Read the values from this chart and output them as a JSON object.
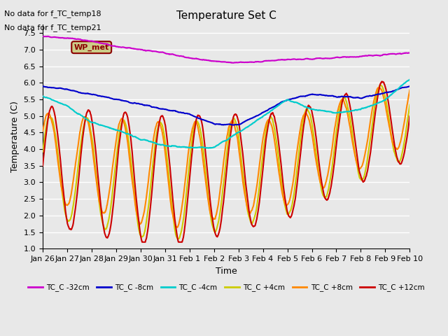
{
  "title": "Temperature Set C",
  "xlabel": "Time",
  "ylabel": "Temperature (C)",
  "ylim": [
    1.0,
    7.75
  ],
  "yticks": [
    1.0,
    1.5,
    2.0,
    2.5,
    3.0,
    3.5,
    4.0,
    4.5,
    5.0,
    5.5,
    6.0,
    6.5,
    7.0,
    7.5
  ],
  "background_color": "#e8e8e8",
  "plot_bg_color": "#e8e8e8",
  "grid_color": "#ffffff",
  "annotations": [
    "No data for f_TC_temp18",
    "No data for f_TC_temp21"
  ],
  "wp_met_label": "WP_met",
  "xticklabels": [
    "Jan 26",
    "Jan 27",
    "Jan 28",
    "Jan 29",
    "Jan 30",
    "Jan 31",
    "Feb 1",
    "Feb 2",
    "Feb 3",
    "Feb 4",
    "Feb 5",
    "Feb 6",
    "Feb 7",
    "Feb 8",
    "Feb 9",
    "Feb 10"
  ],
  "series": {
    "TC_C -32cm": {
      "color": "#cc00cc",
      "lw": 1.5
    },
    "TC_C -8cm": {
      "color": "#0000cc",
      "lw": 1.5
    },
    "TC_C -4cm": {
      "color": "#00cccc",
      "lw": 1.5
    },
    "TC_C +4cm": {
      "color": "#cccc00",
      "lw": 1.5
    },
    "TC_C +8cm": {
      "color": "#ff8800",
      "lw": 1.5
    },
    "TC_C +12cm": {
      "color": "#cc0000",
      "lw": 1.5
    }
  },
  "legend_colors": [
    "#cc00cc",
    "#0000cc",
    "#00cccc",
    "#cccc00",
    "#ff8800",
    "#cc0000"
  ],
  "legend_labels": [
    "TC_C -32cm",
    "TC_C -8cm",
    "TC_C -4cm",
    "TC_C +4cm",
    "TC_C +8cm",
    "TC_C +12cm"
  ]
}
